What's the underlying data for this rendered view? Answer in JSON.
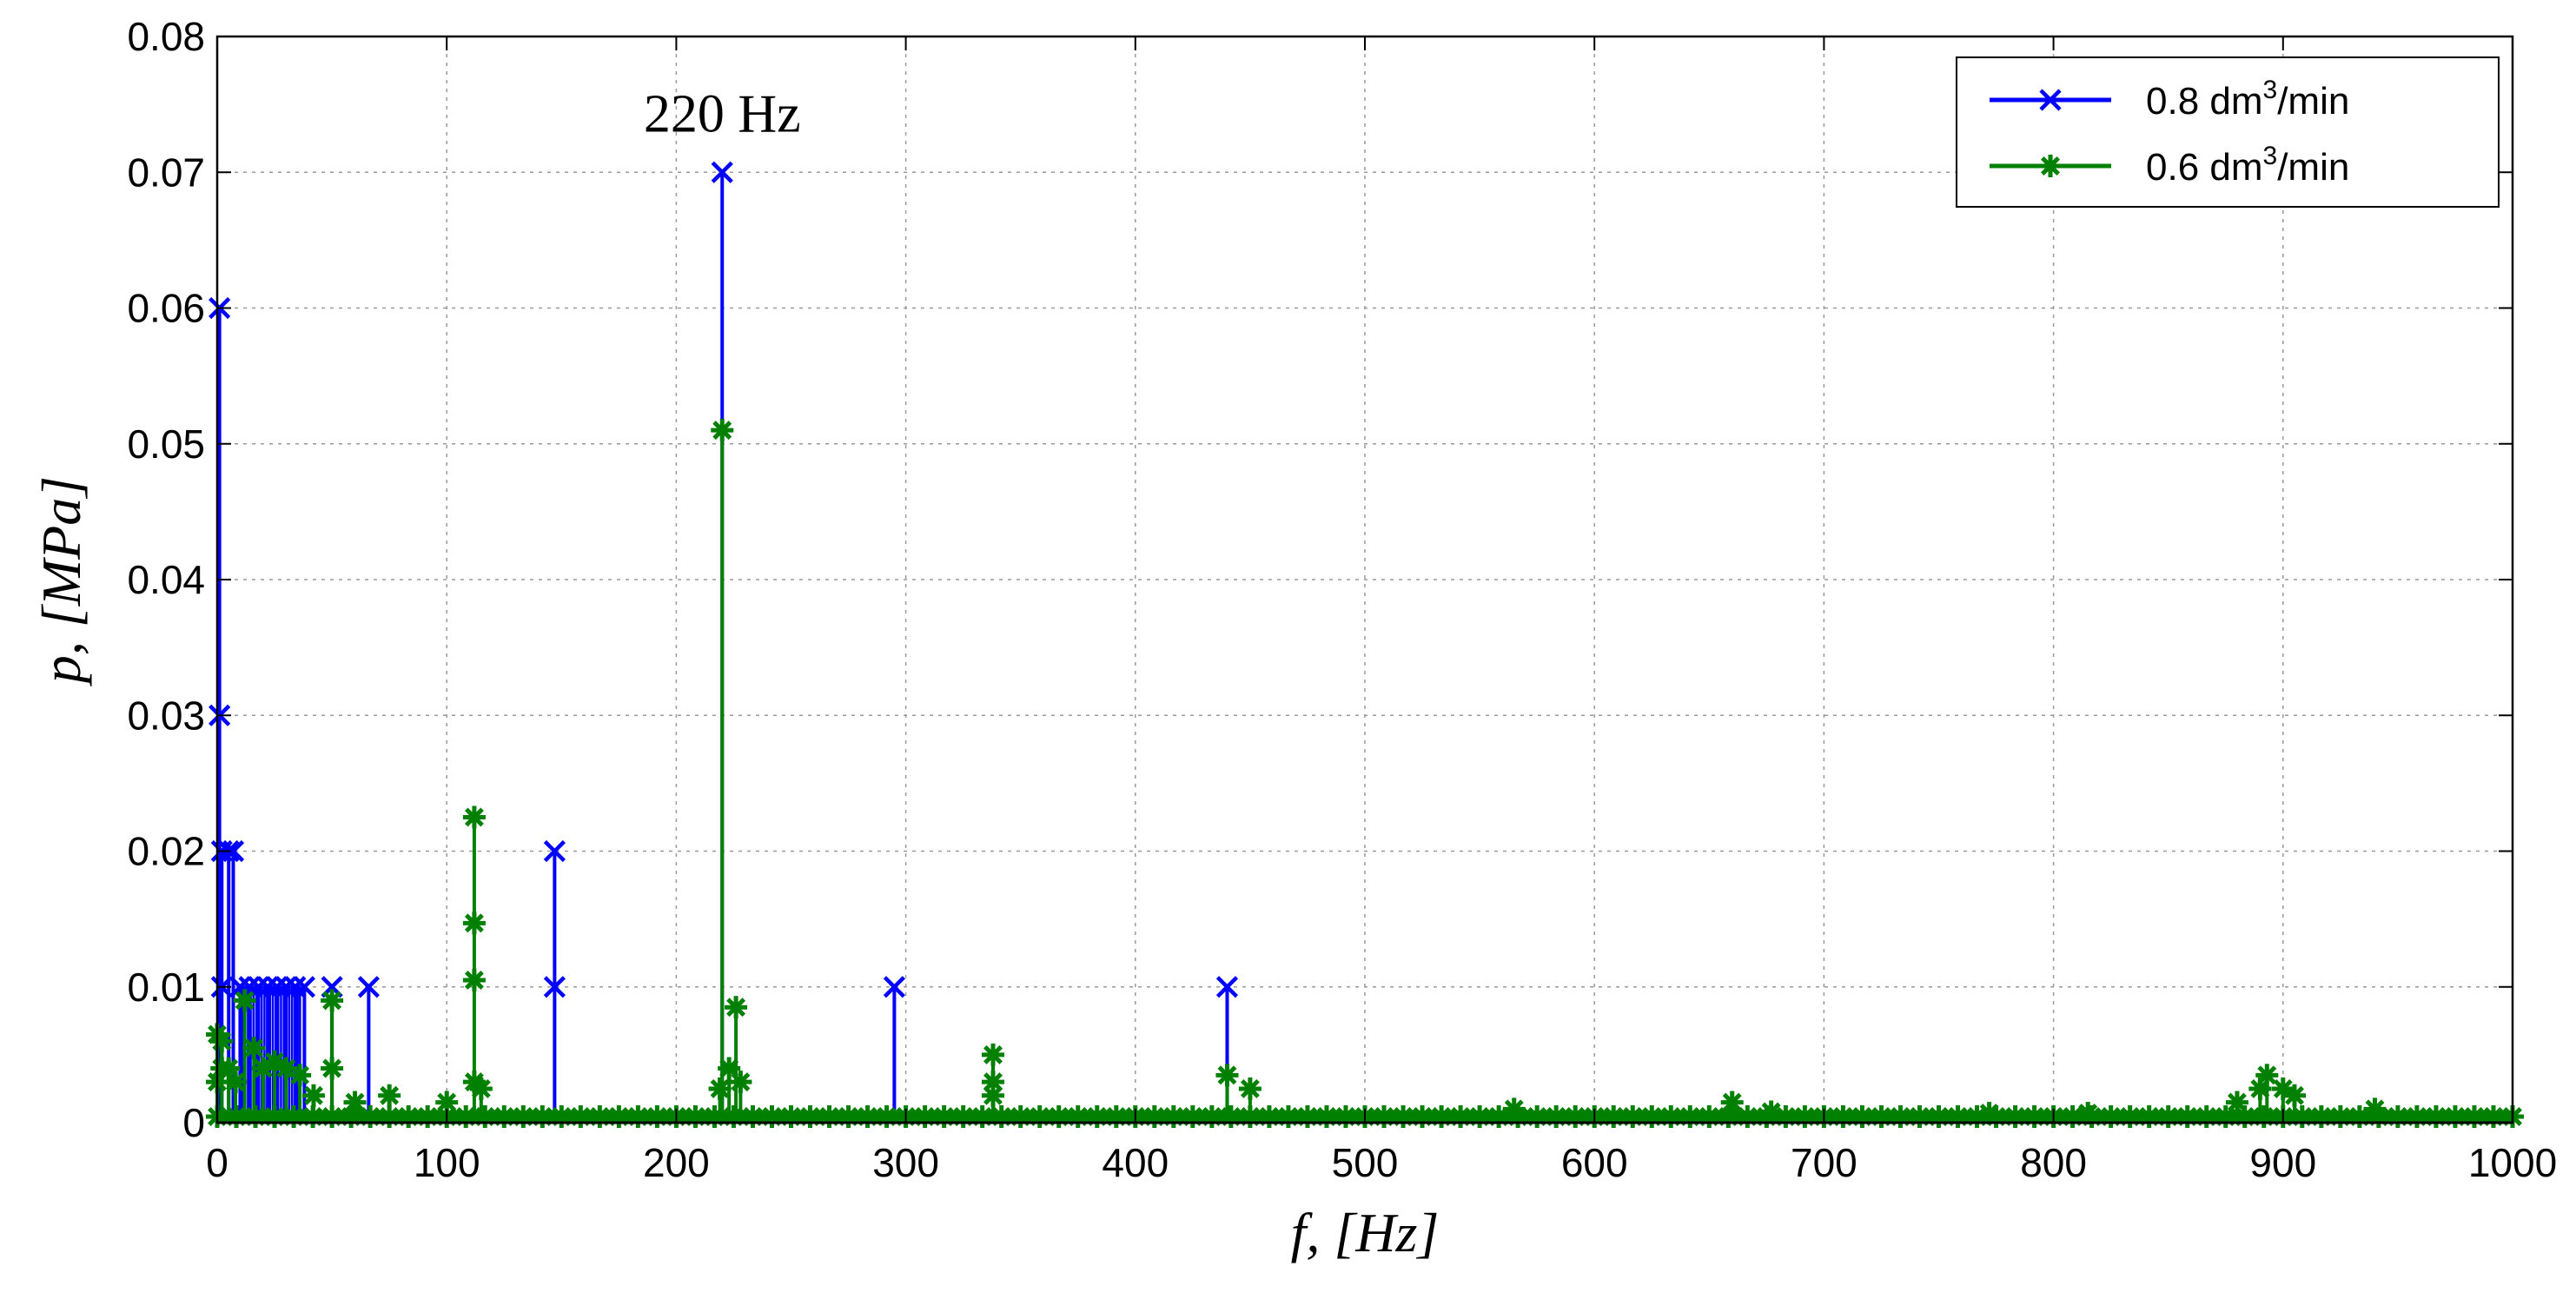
{
  "chart_data": {
    "type": "line",
    "title": "",
    "xlabel": "f, [Hz]",
    "ylabel": "p, [MPa]",
    "xlim": [
      0,
      1000
    ],
    "ylim": [
      0,
      0.08
    ],
    "x_ticks": [
      0,
      100,
      200,
      300,
      400,
      500,
      600,
      700,
      800,
      900,
      1000
    ],
    "y_ticks": [
      0,
      0.01,
      0.02,
      0.03,
      0.04,
      0.05,
      0.06,
      0.07,
      0.08
    ],
    "x_tick_labels": [
      "0",
      "100",
      "200",
      "300",
      "400",
      "500",
      "600",
      "700",
      "800",
      "900",
      "1000"
    ],
    "y_tick_labels": [
      "0",
      "0.01",
      "0.02",
      "0.03",
      "0.04",
      "0.05",
      "0.06",
      "0.07",
      "0.08"
    ],
    "grid": true,
    "legend_position": "top-right",
    "annotations": [
      {
        "text": "220 Hz",
        "x": 220,
        "y": 0.073
      }
    ],
    "series": [
      {
        "name": "0.8 dm³/min",
        "name_base": "0.8 dm",
        "name_sup": "3",
        "name_tail": "/min",
        "color": "#0000ff",
        "marker": "x",
        "stems": [
          [
            1,
            [
              0.03,
              0.06
            ]
          ],
          [
            2,
            [
              0.01,
              0.02
            ]
          ],
          [
            5,
            [
              0.02
            ]
          ],
          [
            7,
            [
              0.02
            ]
          ],
          [
            10,
            [
              0.01
            ]
          ],
          [
            14,
            [
              0.01
            ]
          ],
          [
            18,
            [
              0.01
            ]
          ],
          [
            22,
            [
              0.01
            ]
          ],
          [
            26,
            [
              0.01
            ]
          ],
          [
            30,
            [
              0.01
            ]
          ],
          [
            34,
            [
              0.01
            ]
          ],
          [
            38,
            [
              0.01
            ]
          ],
          [
            50,
            [
              0.01
            ]
          ],
          [
            66,
            [
              0.01
            ]
          ],
          [
            147,
            [
              0.01,
              0.02
            ]
          ],
          [
            220,
            [
              0.07
            ]
          ],
          [
            295,
            [
              0.01
            ]
          ],
          [
            440,
            [
              0.01
            ]
          ]
        ]
      },
      {
        "name": "0.6 dm³/min",
        "name_base": "0.6 dm",
        "name_sup": "3",
        "name_tail": "/min",
        "color": "#008000",
        "marker": "*",
        "stems": [
          [
            0,
            [
              0.003,
              0.0065
            ]
          ],
          [
            2,
            [
              0.004,
              0.006
            ]
          ],
          [
            5,
            [
              0.004
            ]
          ],
          [
            8,
            [
              0.003
            ]
          ],
          [
            12,
            [
              0.009
            ]
          ],
          [
            16,
            [
              0.0055
            ]
          ],
          [
            20,
            [
              0.004
            ]
          ],
          [
            25,
            [
              0.0045
            ]
          ],
          [
            30,
            [
              0.004
            ]
          ],
          [
            36,
            [
              0.0035
            ]
          ],
          [
            42,
            [
              0.002
            ]
          ],
          [
            50,
            [
              0.004,
              0.009
            ]
          ],
          [
            60,
            [
              0.0015
            ]
          ],
          [
            75,
            [
              0.002
            ]
          ],
          [
            100,
            [
              0.0015
            ]
          ],
          [
            112,
            [
              0.003,
              0.0105,
              0.0147,
              0.0225
            ]
          ],
          [
            115,
            [
              0.0025
            ]
          ],
          [
            219,
            [
              0.0025
            ]
          ],
          [
            220,
            [
              0.051
            ]
          ],
          [
            223,
            [
              0.004
            ]
          ],
          [
            226,
            [
              0.0085
            ]
          ],
          [
            228,
            [
              0.003
            ]
          ],
          [
            338,
            [
              0.002,
              0.003,
              0.005
            ]
          ],
          [
            440,
            [
              0.0035
            ]
          ],
          [
            450,
            [
              0.0025
            ]
          ],
          [
            565,
            [
              0.001
            ]
          ],
          [
            660,
            [
              0.0015
            ]
          ],
          [
            677,
            [
              0.0008
            ]
          ],
          [
            772,
            [
              0.0007
            ]
          ],
          [
            815,
            [
              0.0007
            ]
          ],
          [
            880,
            [
              0.0015
            ]
          ],
          [
            890,
            [
              0.0025
            ]
          ],
          [
            893,
            [
              0.0035
            ]
          ],
          [
            900,
            [
              0.0025
            ]
          ],
          [
            905,
            [
              0.002
            ]
          ],
          [
            940,
            [
              0.001
            ]
          ]
        ]
      }
    ]
  }
}
